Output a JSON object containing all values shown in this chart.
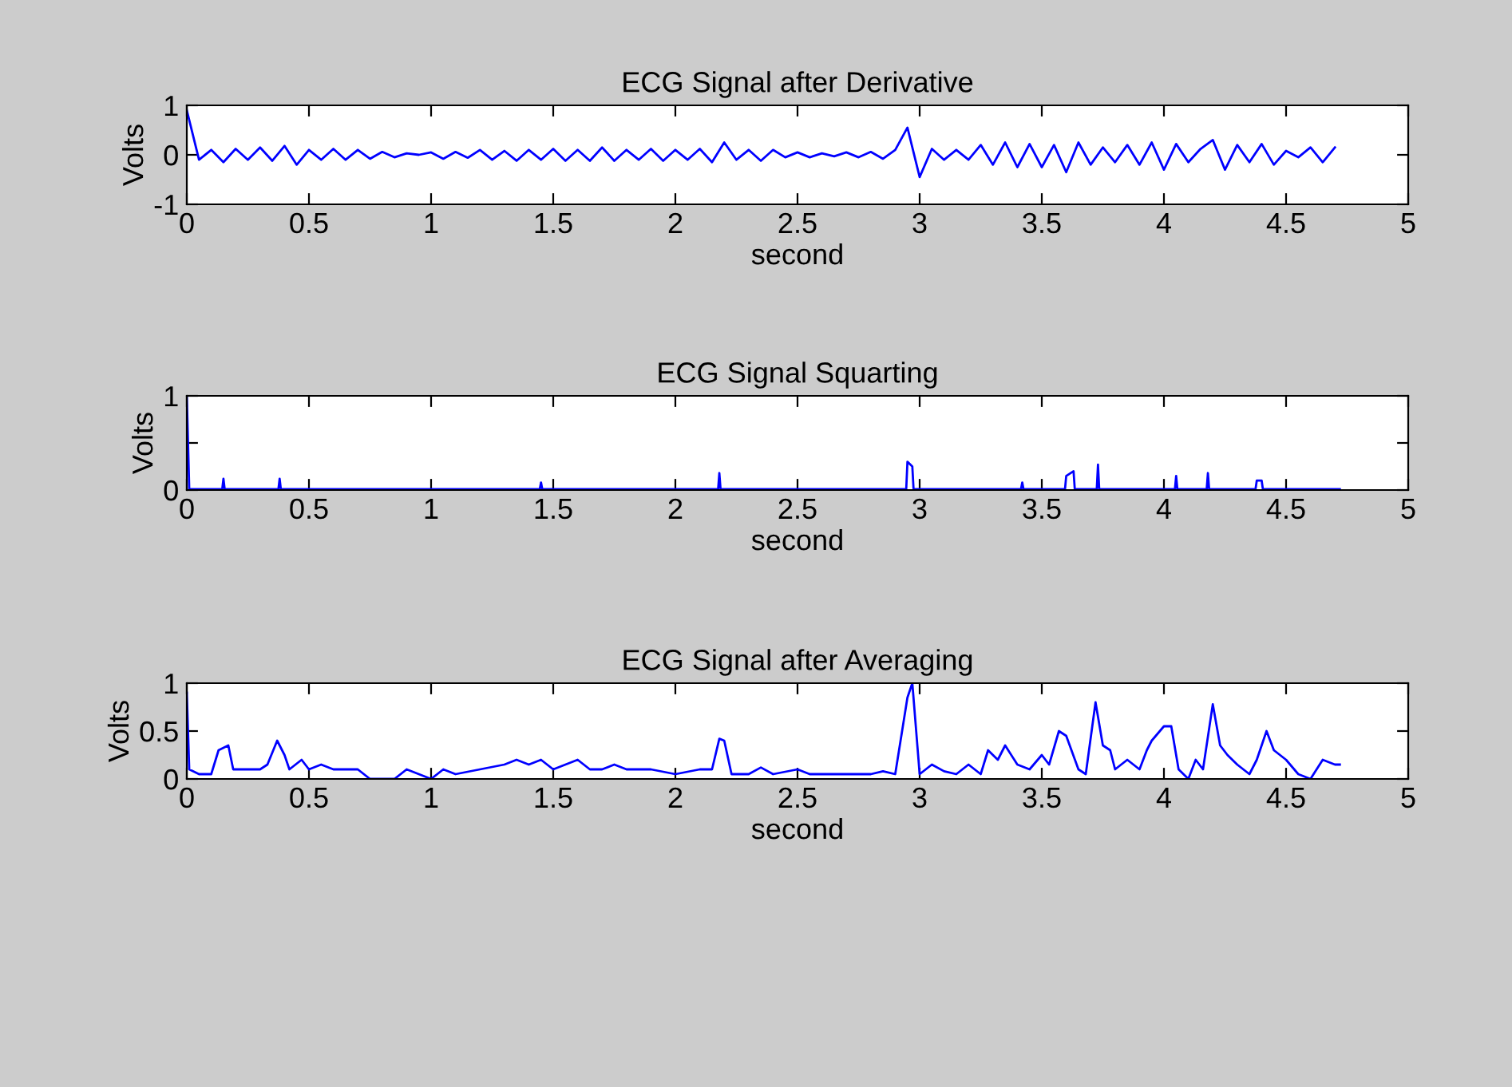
{
  "chart_data": [
    {
      "type": "line",
      "title": "ECG Signal after Derivative",
      "xlabel": "second",
      "ylabel": "Volts",
      "xlim": [
        0,
        5
      ],
      "xticks": [
        0,
        0.5,
        1,
        1.5,
        2,
        2.5,
        3,
        3.5,
        4,
        4.5,
        5
      ],
      "ylim": [
        -1,
        1
      ],
      "yticks": [
        -1,
        0,
        1
      ],
      "series": [
        {
          "color": "#0000ff",
          "x": [
            0,
            0.05,
            0.1,
            0.15,
            0.2,
            0.25,
            0.3,
            0.35,
            0.4,
            0.45,
            0.5,
            0.55,
            0.6,
            0.65,
            0.7,
            0.75,
            0.8,
            0.85,
            0.9,
            0.95,
            1.0,
            1.05,
            1.1,
            1.15,
            1.2,
            1.25,
            1.3,
            1.35,
            1.4,
            1.45,
            1.5,
            1.55,
            1.6,
            1.65,
            1.7,
            1.75,
            1.8,
            1.85,
            1.9,
            1.95,
            2.0,
            2.05,
            2.1,
            2.15,
            2.2,
            2.25,
            2.3,
            2.35,
            2.4,
            2.45,
            2.5,
            2.55,
            2.6,
            2.65,
            2.7,
            2.75,
            2.8,
            2.85,
            2.9,
            2.95,
            3.0,
            3.05,
            3.1,
            3.15,
            3.2,
            3.25,
            3.3,
            3.35,
            3.4,
            3.45,
            3.5,
            3.55,
            3.6,
            3.65,
            3.7,
            3.75,
            3.8,
            3.85,
            3.9,
            3.95,
            4.0,
            4.05,
            4.1,
            4.15,
            4.2,
            4.25,
            4.3,
            4.35,
            4.4,
            4.45,
            4.5,
            4.55,
            4.6,
            4.65,
            4.7
          ],
          "values": [
            0.9,
            -0.1,
            0.1,
            -0.15,
            0.12,
            -0.1,
            0.15,
            -0.12,
            0.18,
            -0.2,
            0.1,
            -0.1,
            0.12,
            -0.1,
            0.1,
            -0.08,
            0.06,
            -0.05,
            0.03,
            0,
            0.05,
            -0.08,
            0.06,
            -0.06,
            0.1,
            -0.1,
            0.08,
            -0.12,
            0.1,
            -0.1,
            0.12,
            -0.12,
            0.1,
            -0.12,
            0.15,
            -0.12,
            0.1,
            -0.1,
            0.12,
            -0.12,
            0.1,
            -0.1,
            0.12,
            -0.15,
            0.25,
            -0.1,
            0.1,
            -0.12,
            0.1,
            -0.05,
            0.05,
            -0.05,
            0.03,
            -0.03,
            0.05,
            -0.05,
            0.06,
            -0.08,
            0.1,
            0.55,
            -0.45,
            0.12,
            -0.1,
            0.1,
            -0.1,
            0.2,
            -0.2,
            0.25,
            -0.25,
            0.22,
            -0.25,
            0.2,
            -0.35,
            0.25,
            -0.2,
            0.15,
            -0.15,
            0.2,
            -0.2,
            0.25,
            -0.3,
            0.22,
            -0.15,
            0.12,
            0.3,
            -0.3,
            0.2,
            -0.15,
            0.22,
            -0.2,
            0.08,
            -0.05,
            0.15,
            -0.15,
            0.15
          ]
        }
      ]
    },
    {
      "type": "line",
      "title": "ECG Signal Squarting",
      "xlabel": "second",
      "ylabel": "Volts",
      "xlim": [
        0,
        5
      ],
      "xticks": [
        0,
        0.5,
        1,
        1.5,
        2,
        2.5,
        3,
        3.5,
        4,
        4.5,
        5
      ],
      "ylim": [
        0,
        1
      ],
      "yticks": [
        0,
        {
          "value": 0.5,
          "label": null
        },
        1
      ],
      "series": [
        {
          "color": "#0000ff",
          "x": [
            0,
            0.01,
            0.145,
            0.15,
            0.155,
            0.375,
            0.38,
            0.385,
            1.445,
            1.45,
            1.455,
            2.175,
            2.18,
            2.185,
            2.945,
            2.95,
            2.97,
            2.975,
            3.415,
            3.42,
            3.425,
            3.595,
            3.6,
            3.63,
            3.635,
            3.725,
            3.73,
            3.735,
            4.045,
            4.05,
            4.055,
            4.175,
            4.18,
            4.185,
            4.375,
            4.38,
            4.4,
            4.405,
            4.72
          ],
          "values": [
            1.0,
            0.01,
            0.01,
            0.12,
            0.01,
            0.01,
            0.12,
            0.01,
            0.01,
            0.08,
            0.01,
            0.01,
            0.18,
            0.01,
            0.01,
            0.3,
            0.25,
            0.01,
            0.01,
            0.08,
            0.01,
            0.01,
            0.15,
            0.2,
            0.01,
            0.01,
            0.27,
            0.01,
            0.01,
            0.15,
            0.01,
            0.01,
            0.18,
            0.01,
            0.01,
            0.1,
            0.1,
            0.01,
            0.01
          ]
        }
      ]
    },
    {
      "type": "line",
      "title": "ECG Signal after Averaging",
      "xlabel": "second",
      "ylabel": "Volts",
      "xlim": [
        0,
        5
      ],
      "xticks": [
        0,
        0.5,
        1,
        1.5,
        2,
        2.5,
        3,
        3.5,
        4,
        4.5,
        5
      ],
      "ylim": [
        0,
        1
      ],
      "yticks": [
        0,
        0.5,
        1
      ],
      "series": [
        {
          "color": "#0000ff",
          "x": [
            0,
            0.01,
            0.05,
            0.1,
            0.13,
            0.17,
            0.19,
            0.25,
            0.3,
            0.33,
            0.37,
            0.4,
            0.42,
            0.47,
            0.5,
            0.55,
            0.6,
            0.7,
            0.75,
            0.85,
            0.9,
            0.95,
            1.0,
            1.05,
            1.1,
            1.2,
            1.3,
            1.35,
            1.4,
            1.45,
            1.5,
            1.55,
            1.6,
            1.65,
            1.7,
            1.75,
            1.8,
            1.9,
            2.0,
            2.1,
            2.15,
            2.18,
            2.2,
            2.23,
            2.3,
            2.35,
            2.4,
            2.5,
            2.55,
            2.6,
            2.7,
            2.8,
            2.85,
            2.9,
            2.95,
            2.97,
            3.0,
            3.05,
            3.1,
            3.15,
            3.2,
            3.25,
            3.28,
            3.32,
            3.35,
            3.4,
            3.45,
            3.5,
            3.53,
            3.57,
            3.6,
            3.65,
            3.68,
            3.72,
            3.75,
            3.78,
            3.8,
            3.85,
            3.9,
            3.93,
            3.95,
            4.0,
            4.03,
            4.06,
            4.1,
            4.13,
            4.16,
            4.2,
            4.23,
            4.26,
            4.3,
            4.35,
            4.38,
            4.42,
            4.45,
            4.5,
            4.55,
            4.6,
            4.65,
            4.7,
            4.72
          ],
          "values": [
            0.9,
            0.1,
            0.05,
            0.05,
            0.3,
            0.35,
            0.1,
            0.1,
            0.1,
            0.15,
            0.4,
            0.25,
            0.1,
            0.2,
            0.1,
            0.15,
            0.1,
            0.1,
            0,
            0,
            0.1,
            0.05,
            0,
            0.1,
            0.05,
            0.1,
            0.15,
            0.2,
            0.15,
            0.2,
            0.1,
            0.15,
            0.2,
            0.1,
            0.1,
            0.15,
            0.1,
            0.1,
            0.05,
            0.1,
            0.1,
            0.42,
            0.4,
            0.05,
            0.05,
            0.12,
            0.05,
            0.1,
            0.05,
            0.05,
            0.05,
            0.05,
            0.08,
            0.05,
            0.85,
            1.0,
            0.05,
            0.15,
            0.08,
            0.05,
            0.15,
            0.05,
            0.3,
            0.2,
            0.35,
            0.15,
            0.1,
            0.25,
            0.15,
            0.5,
            0.45,
            0.1,
            0.05,
            0.8,
            0.35,
            0.3,
            0.1,
            0.2,
            0.1,
            0.3,
            0.4,
            0.55,
            0.55,
            0.1,
            0,
            0.2,
            0.1,
            0.78,
            0.35,
            0.25,
            0.15,
            0.05,
            0.2,
            0.5,
            0.3,
            0.2,
            0.05,
            0,
            0.2,
            0.15,
            0.15
          ]
        }
      ]
    }
  ]
}
